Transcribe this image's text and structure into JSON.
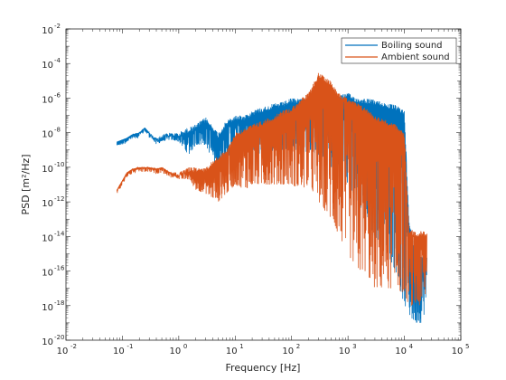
{
  "chart_data": {
    "type": "line",
    "xlabel": "Frequency [Hz]",
    "ylabel": "PSD [m²/Hz]",
    "xscale": "log",
    "yscale": "log",
    "xlim": [
      0.01,
      100000
    ],
    "ylim": [
      1e-20,
      0.01
    ],
    "x_ticks": [
      {
        "base": "10",
        "exp": "-2"
      },
      {
        "base": "10",
        "exp": "-1"
      },
      {
        "base": "10",
        "exp": "0"
      },
      {
        "base": "10",
        "exp": "1"
      },
      {
        "base": "10",
        "exp": "2"
      },
      {
        "base": "10",
        "exp": "3"
      },
      {
        "base": "10",
        "exp": "4"
      },
      {
        "base": "10",
        "exp": "5"
      }
    ],
    "y_ticks": [
      {
        "base": "10",
        "exp": "-20"
      },
      {
        "base": "10",
        "exp": "-18"
      },
      {
        "base": "10",
        "exp": "-16"
      },
      {
        "base": "10",
        "exp": "-14"
      },
      {
        "base": "10",
        "exp": "-12"
      },
      {
        "base": "10",
        "exp": "-10"
      },
      {
        "base": "10",
        "exp": "-8"
      },
      {
        "base": "10",
        "exp": "-6"
      },
      {
        "base": "10",
        "exp": "-4"
      },
      {
        "base": "10",
        "exp": "-2"
      }
    ],
    "grid": false,
    "legend_position": "top-right",
    "series": [
      {
        "name": "Boiling sound",
        "color": "#0072BD",
        "x": [
          0.08,
          0.12,
          0.15,
          0.2,
          0.25,
          0.3,
          0.4,
          0.5,
          0.7,
          1,
          1.5,
          2,
          3,
          5,
          7,
          10,
          15,
          20,
          30,
          50,
          70,
          100,
          150,
          200,
          300,
          500,
          700,
          1000,
          1500,
          2000,
          3000,
          5000,
          7000,
          10000,
          12000,
          15000,
          20000,
          25000
        ],
        "y": [
          3e-09,
          5e-09,
          8e-09,
          1e-08,
          2e-08,
          1e-08,
          5e-09,
          8e-09,
          1e-08,
          1e-08,
          2e-08,
          3e-08,
          8e-08,
          1e-08,
          5e-08,
          1e-07,
          1e-07,
          2e-07,
          3e-07,
          5e-07,
          6e-07,
          1e-06,
          1e-06,
          1e-06,
          2e-06,
          2e-06,
          1.5e-06,
          2e-06,
          1e-06,
          1e-06,
          8e-07,
          5e-07,
          4e-07,
          2e-07,
          1e-13,
          3e-15,
          1e-15,
          1e-15
        ],
        "y_low": [
          3e-09,
          5e-09,
          8e-09,
          1e-08,
          2e-08,
          1e-08,
          2e-09,
          3e-09,
          4e-09,
          3e-09,
          5e-10,
          2e-09,
          2e-09,
          5e-11,
          5e-10,
          3e-10,
          1e-09,
          1e-09,
          5e-10,
          1e-09,
          1e-09,
          1e-09,
          5e-10,
          1e-09,
          5e-10,
          1e-10,
          1e-10,
          1e-11,
          1e-12,
          1e-13,
          1e-14,
          1e-15,
          1e-16,
          1e-18,
          3e-19,
          1e-19,
          1e-19,
          1e-18
        ]
      },
      {
        "name": "Ambient sound",
        "color": "#D95319",
        "x": [
          0.08,
          0.12,
          0.15,
          0.2,
          0.25,
          0.3,
          0.4,
          0.5,
          0.7,
          1,
          1.5,
          2,
          3,
          5,
          7,
          10,
          15,
          20,
          30,
          50,
          70,
          100,
          150,
          200,
          300,
          500,
          700,
          1000,
          1500,
          2000,
          3000,
          5000,
          7000,
          10000,
          12000,
          15000,
          20000,
          25000
        ],
        "y": [
          5e-12,
          5e-11,
          8e-11,
          1e-10,
          1e-10,
          1e-10,
          8e-11,
          1e-10,
          5e-11,
          5e-11,
          1e-10,
          1e-10,
          1e-10,
          5e-10,
          1e-09,
          1e-08,
          2e-08,
          3e-08,
          5e-08,
          1e-07,
          2e-07,
          3e-07,
          1e-06,
          2e-06,
          3e-05,
          1e-05,
          2e-06,
          1e-06,
          5e-07,
          3e-07,
          1e-07,
          5e-08,
          3e-08,
          1e-08,
          3e-14,
          2e-14,
          2e-14,
          2e-14
        ],
        "y_low": [
          5e-12,
          5e-11,
          8e-11,
          1e-10,
          1e-10,
          1e-10,
          8e-11,
          1e-10,
          5e-11,
          2e-11,
          2e-11,
          5e-12,
          3e-12,
          1e-12,
          3e-12,
          1e-11,
          5e-12,
          1e-11,
          1e-11,
          1e-11,
          1e-11,
          1e-11,
          5e-12,
          1e-11,
          1e-12,
          1e-13,
          1e-14,
          1e-15,
          1e-16,
          1e-16,
          1e-17,
          1e-17,
          1e-17,
          5e-18,
          1e-18,
          1e-18,
          1e-18,
          5e-18
        ]
      }
    ]
  }
}
